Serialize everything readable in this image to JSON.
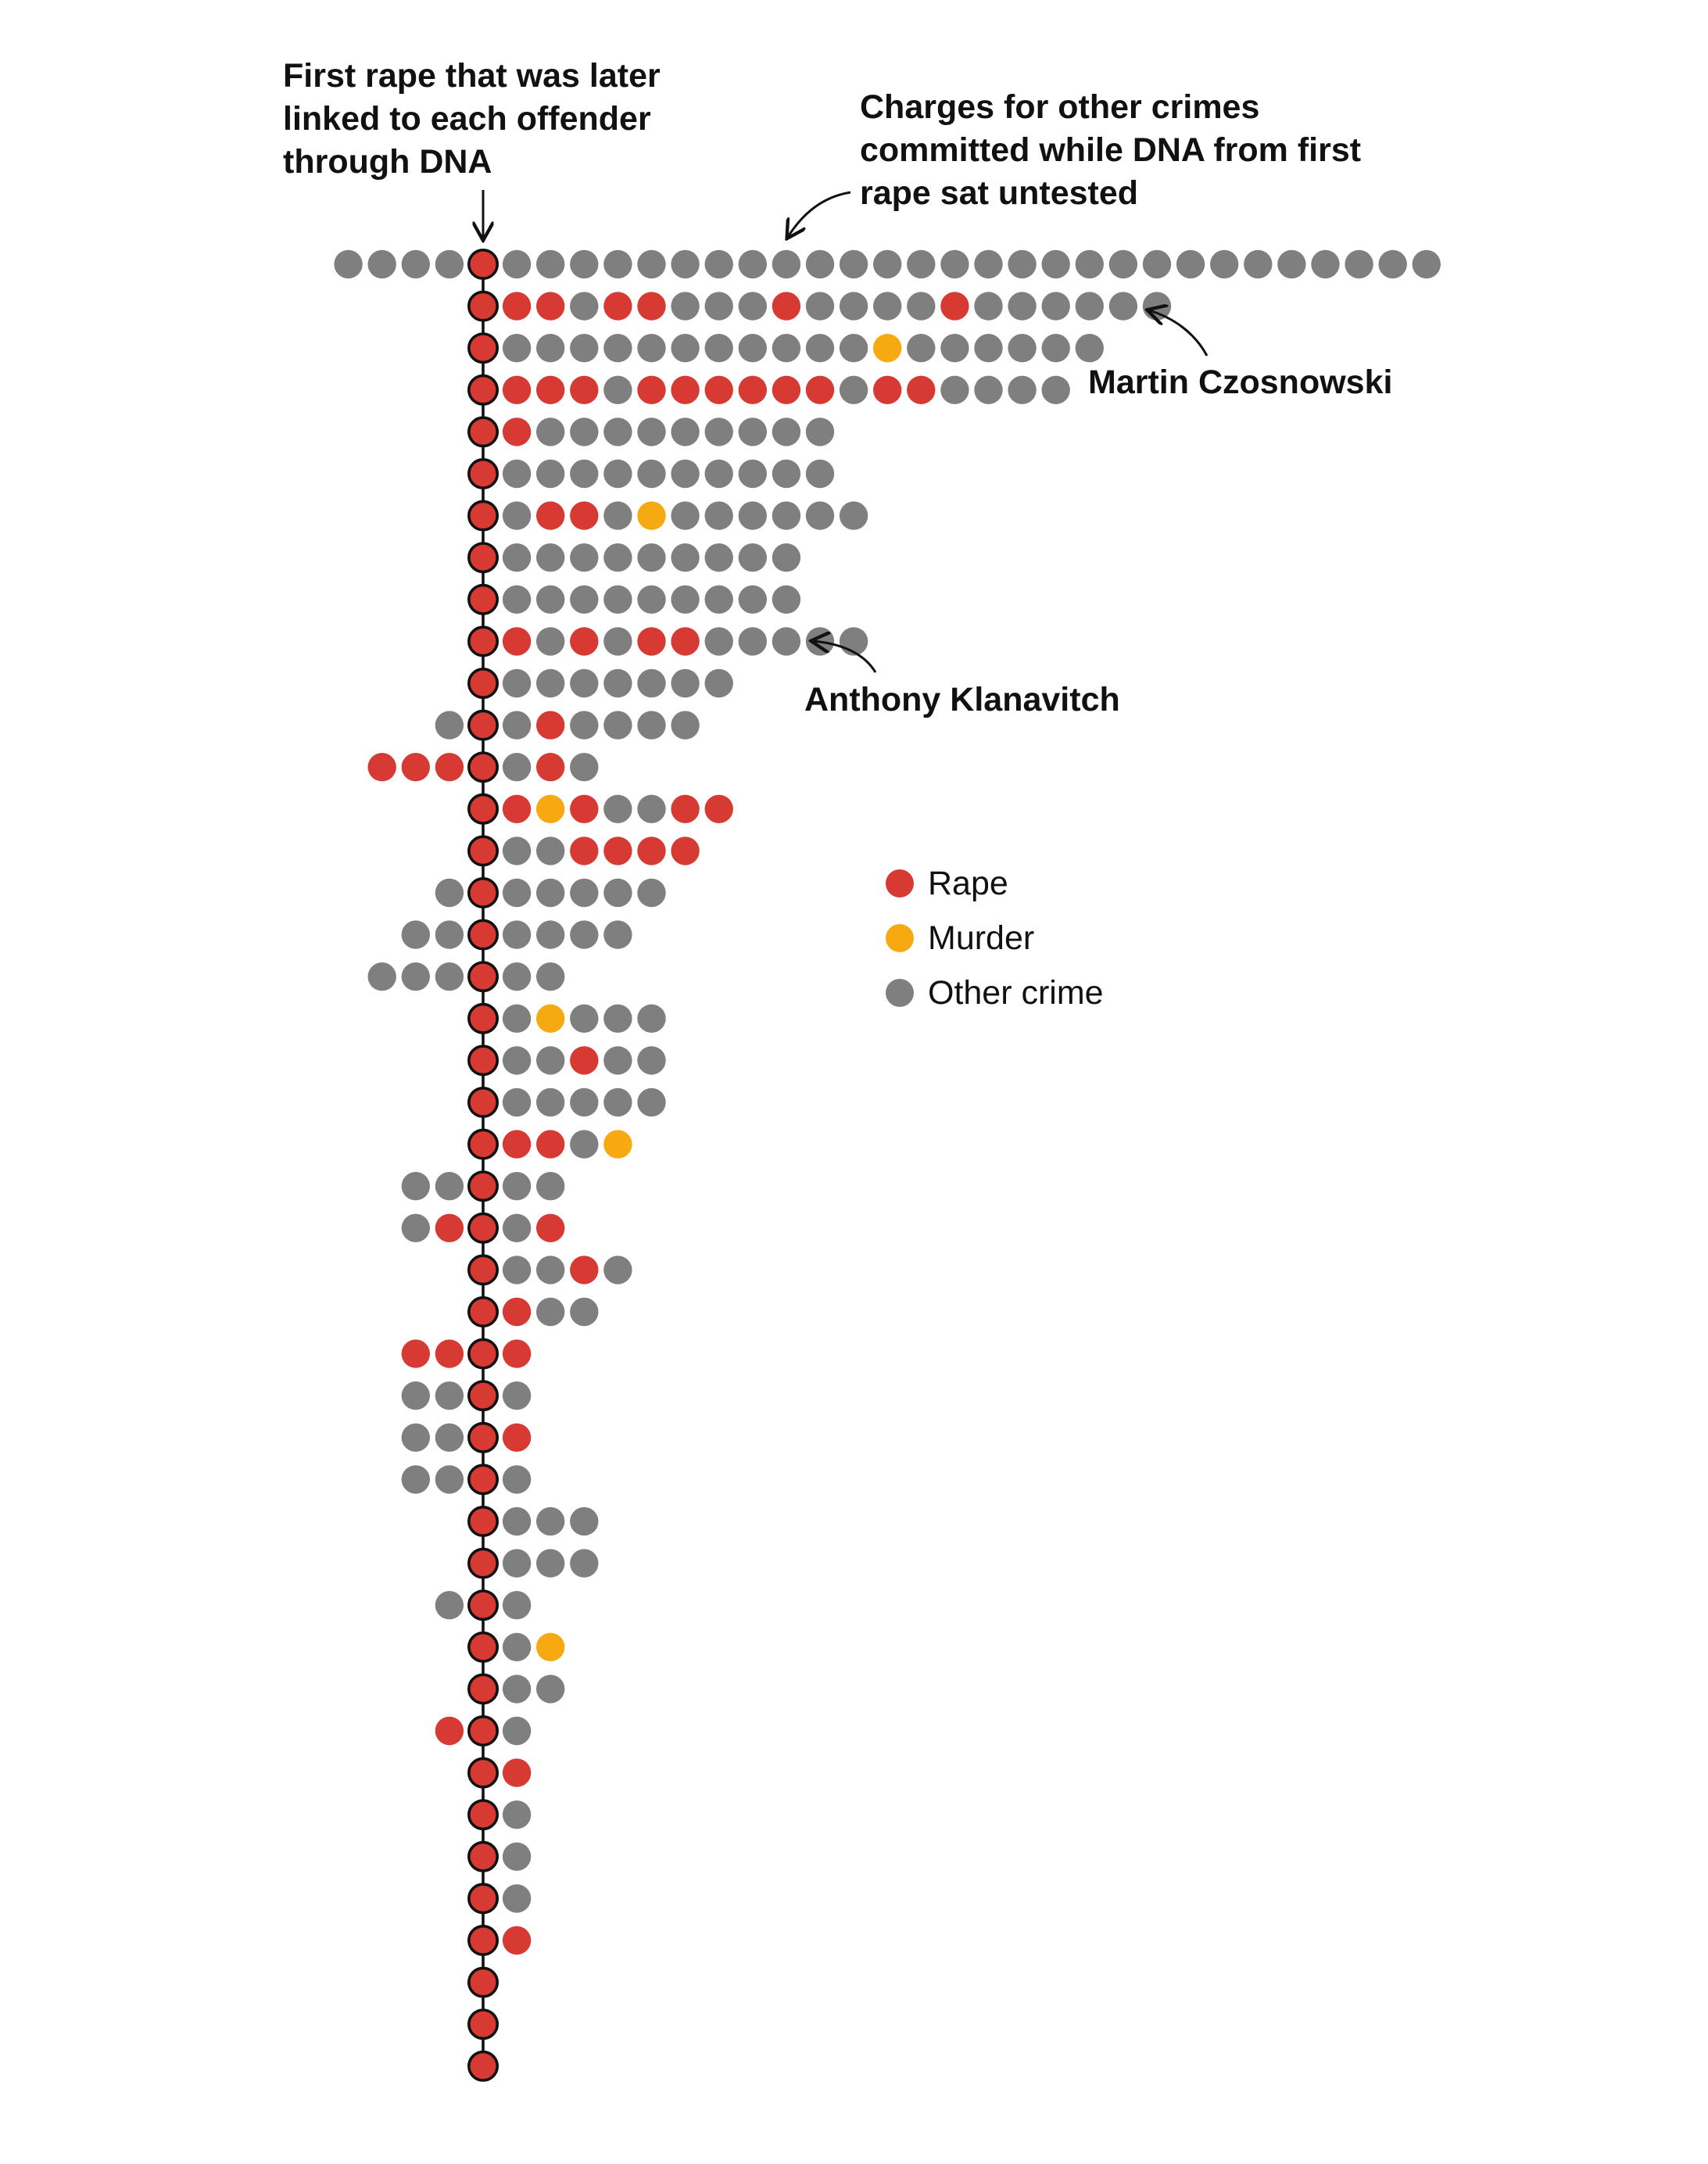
{
  "annotations": {
    "first_rape": "First rape that was later linked to each offender through DNA",
    "other_charges": "Charges for other crimes committed while DNA from first rape sat untested",
    "martin": "Martin Czosnowski",
    "anthony": "Anthony Klanavitch"
  },
  "colors": {
    "rape": "#d63a32",
    "murder": "#f7a912",
    "other": "#7f7f7f",
    "outline": "#111111"
  },
  "chart_data": {
    "type": "dot-timeline",
    "legend": [
      {
        "key": "R",
        "label": "Rape"
      },
      {
        "key": "M",
        "label": "Murder"
      },
      {
        "key": "O",
        "label": "Other crime"
      }
    ],
    "rows": [
      {
        "before": "OOOO",
        "after": "OOOOOOOOOOOOOOOOOOOOOOOOOOOO"
      },
      {
        "before": "",
        "after": "RRORROOOROOOOROOOOOO"
      },
      {
        "before": "",
        "after": "OOOOOOOOOOOMOOOOOO"
      },
      {
        "before": "",
        "after": "RRRORRRRRRORROOOO"
      },
      {
        "before": "",
        "after": "ROOOOOOOOO"
      },
      {
        "before": "",
        "after": "OOOOOOOOOO"
      },
      {
        "before": "",
        "after": "ORROMOOOOOO"
      },
      {
        "before": "",
        "after": "OOOOOOOOO"
      },
      {
        "before": "",
        "after": "OOOOOOOOO"
      },
      {
        "before": "",
        "after": "RORORROOOOO"
      },
      {
        "before": "",
        "after": "OOOOOOO"
      },
      {
        "before": "O",
        "after": "OROOOO"
      },
      {
        "before": "RRR",
        "after": "ORO"
      },
      {
        "before": "",
        "after": "RMROORR"
      },
      {
        "before": "",
        "after": "OORRRR"
      },
      {
        "before": "O",
        "after": "OOOOO"
      },
      {
        "before": "OO",
        "after": "OOOO"
      },
      {
        "before": "OOO",
        "after": "OO"
      },
      {
        "before": "",
        "after": "OMOOO"
      },
      {
        "before": "",
        "after": "OOROO"
      },
      {
        "before": "",
        "after": "OOOOO"
      },
      {
        "before": "",
        "after": "RROM"
      },
      {
        "before": "OO",
        "after": "OO"
      },
      {
        "before": "OR",
        "after": "OR"
      },
      {
        "before": "",
        "after": "OORO"
      },
      {
        "before": "",
        "after": "ROO"
      },
      {
        "before": "RR",
        "after": "R"
      },
      {
        "before": "OO",
        "after": "O"
      },
      {
        "before": "OO",
        "after": "R"
      },
      {
        "before": "OO",
        "after": "O"
      },
      {
        "before": "",
        "after": "OOO"
      },
      {
        "before": "",
        "after": "OOO"
      },
      {
        "before": "O",
        "after": "O"
      },
      {
        "before": "",
        "after": "OM"
      },
      {
        "before": "",
        "after": "OO"
      },
      {
        "before": "R",
        "after": "O"
      },
      {
        "before": "",
        "after": "R"
      },
      {
        "before": "",
        "after": "O"
      },
      {
        "before": "",
        "after": "O"
      },
      {
        "before": "",
        "after": "O"
      },
      {
        "before": "",
        "after": "R"
      },
      {
        "before": "",
        "after": ""
      },
      {
        "before": "",
        "after": ""
      },
      {
        "before": "",
        "after": ""
      }
    ]
  }
}
